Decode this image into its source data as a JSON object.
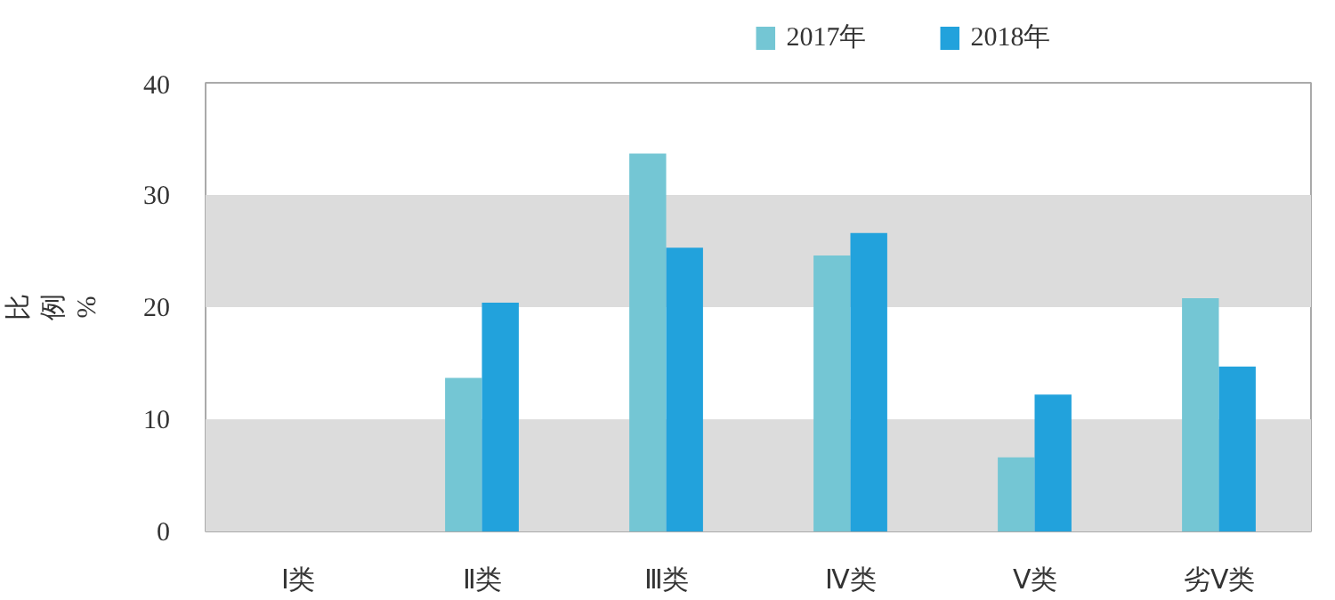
{
  "chart_data": {
    "type": "bar",
    "ylabel": "比例%",
    "categories": [
      "Ⅰ类",
      "Ⅱ类",
      "Ⅲ类",
      "Ⅳ类",
      "Ⅴ类",
      "劣Ⅴ类"
    ],
    "series": [
      {
        "name": "2017年",
        "color": "#74c6d4",
        "values": [
          0,
          13.7,
          33.7,
          24.6,
          6.6,
          20.8
        ]
      },
      {
        "name": "2018年",
        "color": "#22a2dc",
        "values": [
          0,
          20.4,
          25.3,
          26.6,
          12.2,
          14.7
        ]
      }
    ],
    "ylim": [
      0,
      40
    ],
    "yticks": [
      0,
      10,
      20,
      30,
      40
    ],
    "grid": false,
    "legend": "top",
    "bands": [
      {
        "axis": "y",
        "from": 0,
        "to": 10,
        "color": "#dcdcdc"
      },
      {
        "axis": "y",
        "from": 20,
        "to": 30,
        "color": "#dcdcdc"
      }
    ]
  }
}
